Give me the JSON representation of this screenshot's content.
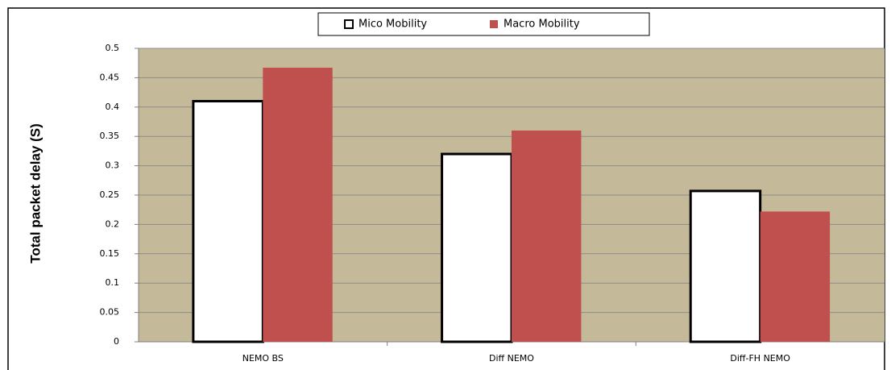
{
  "chart_data": {
    "type": "bar",
    "y_label": "Total packet delay (S)",
    "categories": [
      "NEMO BS",
      "Diff NEMO",
      "Diff-FH NEMO"
    ],
    "series": [
      {
        "name": "Mico Mobility",
        "color": "#ffffff",
        "values": [
          0.41,
          0.32,
          0.257
        ]
      },
      {
        "name": "Macro Mobility",
        "color": "#c0504d",
        "values": [
          0.467,
          0.36,
          0.222
        ]
      }
    ],
    "ylim": [
      0,
      0.5
    ],
    "yticks": [
      0,
      0.05,
      0.1,
      0.15,
      0.2,
      0.25,
      0.3,
      0.35,
      0.4,
      0.45,
      0.5
    ],
    "grid": true,
    "legend": "top"
  }
}
